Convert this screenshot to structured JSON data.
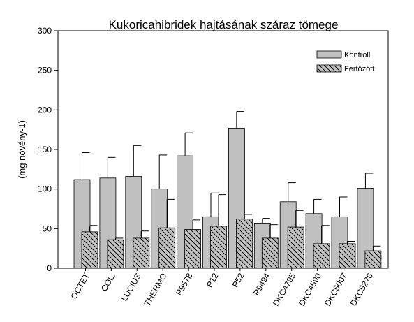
{
  "chart_data": {
    "type": "bar",
    "title": "Kukoricahibridek hajtásának száraz  tömege",
    "ylabel": "(mg növény-1)",
    "xlabel": "",
    "ylim": [
      0,
      300
    ],
    "yticks": [
      0,
      50,
      100,
      150,
      200,
      250,
      300
    ],
    "grid": false,
    "legend_position": "top-right",
    "categories": [
      "OCTET",
      "COL.",
      "LUCIUS",
      "THERMO",
      "P9578",
      "P12",
      "P52",
      "P9494",
      "DKC4795",
      "DKC4590",
      "DKC5007",
      "DKC5276"
    ],
    "series": [
      {
        "name": "Kontroll",
        "fill": "#c0c0c0",
        "pattern": "solid",
        "values": [
          112,
          114,
          116,
          100,
          142,
          65,
          177,
          57,
          84,
          69,
          65,
          101
        ],
        "errors": [
          34,
          26,
          39,
          43,
          29,
          30,
          21,
          6,
          24,
          18,
          25,
          19
        ]
      },
      {
        "name": "Fertőzött",
        "fill": "#c0c0c0",
        "pattern": "hatch",
        "values": [
          46,
          36,
          38,
          51,
          49,
          53,
          62,
          38,
          52,
          31,
          31,
          22
        ],
        "errors": [
          8,
          2,
          9,
          36,
          12,
          40,
          6,
          17,
          21,
          23,
          3,
          6
        ]
      }
    ]
  }
}
